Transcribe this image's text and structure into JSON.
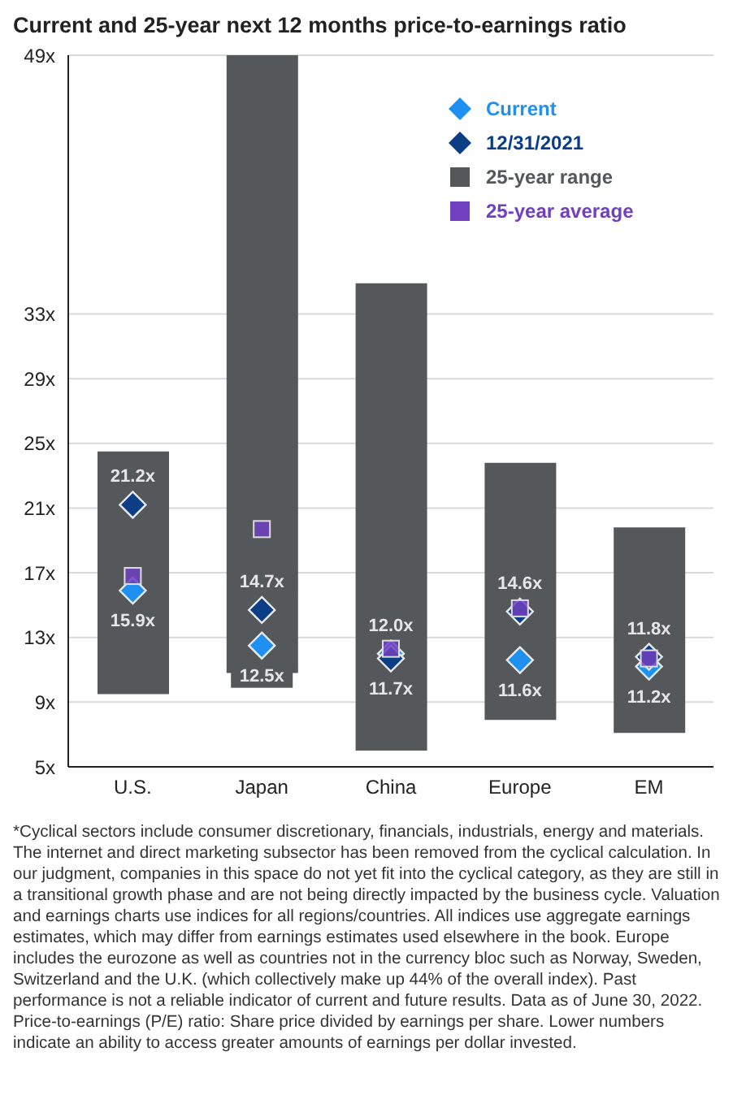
{
  "chart_data": {
    "type": "bar",
    "title": "Current and 25-year next 12 months price-to-earnings ratio",
    "categories": [
      "U.S.",
      "Japan",
      "China",
      "Europe",
      "EM"
    ],
    "series": [
      {
        "name": "25-year range",
        "type": "bar",
        "color": "#54585a",
        "base": [
          9.5,
          10.8,
          6.0,
          7.9,
          7.1
        ],
        "values": [
          15.0,
          38.2,
          28.9,
          15.9,
          12.7
        ]
      },
      {
        "name": "25-year average",
        "type": "scatter",
        "marker": "square",
        "color": "#7040c0",
        "values": [
          16.8,
          19.7,
          12.3,
          14.8,
          11.7
        ]
      },
      {
        "name": "Current",
        "type": "scatter",
        "marker": "diamond",
        "color": "#1e90f0",
        "values": [
          15.9,
          12.5,
          12.0,
          11.6,
          11.2
        ],
        "value_labels": [
          "15.9x",
          "12.5x",
          "12.0x",
          "11.6x",
          "11.2x"
        ]
      },
      {
        "name": "12/31/2021",
        "type": "scatter",
        "marker": "diamond",
        "color": "#0b3e84",
        "values": [
          21.2,
          14.7,
          11.7,
          14.6,
          11.8
        ],
        "value_labels": [
          "21.2x",
          "14.7x",
          "11.7x",
          "14.6x",
          "11.8x"
        ]
      }
    ],
    "ylim": [
      5,
      49
    ],
    "yticks": [
      {
        "value": 5,
        "label": "5x"
      },
      {
        "value": 9,
        "label": "9x"
      },
      {
        "value": 13,
        "label": "13x"
      },
      {
        "value": 17,
        "label": "17x"
      },
      {
        "value": 21,
        "label": "21x"
      },
      {
        "value": 25,
        "label": "25x"
      },
      {
        "value": 29,
        "label": "29x"
      },
      {
        "value": 33,
        "label": "33x"
      },
      {
        "value": 49,
        "label": "49x"
      }
    ],
    "grid": "y",
    "legend": "top right",
    "annotations": [
      "*Cyclical sectors include consumer discretionary, financials, industrials, energy and materials. The internet and direct marketing subsector has been removed from the cyclical calculation. In our judgment, companies in this space do not yet fit into the cyclical category, as they are still in a transitional growth phase and are not being directly impacted by the business cycle. Valuation and earnings charts use indices for all regions/countries. All indices use aggregate earnings estimates, which may differ from earnings estimates used elsewhere in the book. Europe includes the eurozone as well as countries not in the currency bloc such as Norway, Sweden, Switzerland and the U.K. (which collectively make up 44% of the overall index). Past performance is not a reliable indicator of current and future results. Data as of June 30, 2022. Price-to-earnings (P/E) ratio: Share price divided by earnings per share. Lower numbers indicate an ability to access greater amounts of earnings per dollar invested."
    ]
  }
}
